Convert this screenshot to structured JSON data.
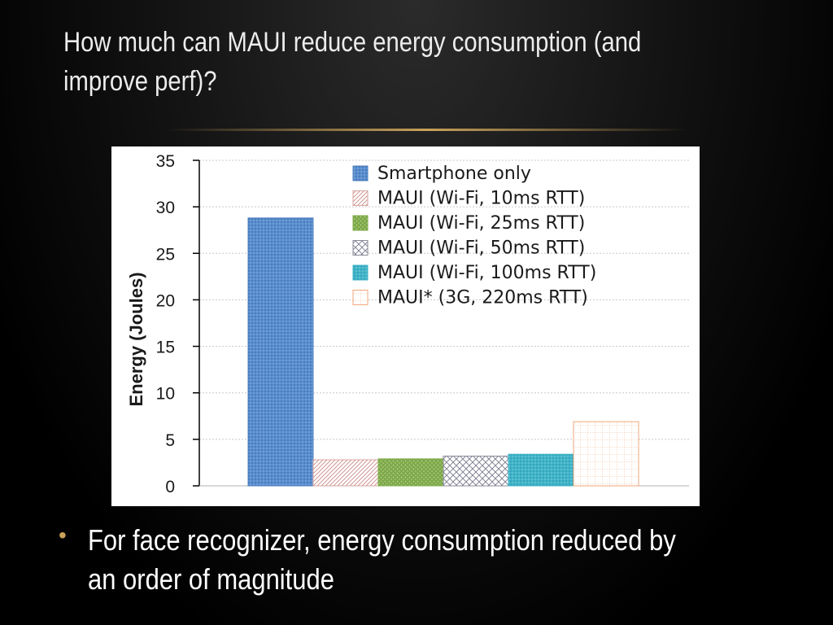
{
  "slide": {
    "title": "How much can MAUI reduce energy consumption (and improve perf)?",
    "bullet_symbol": "•",
    "bullet": "For face recognizer, energy consumption reduced by an order of magnitude"
  },
  "chart_data": {
    "type": "bar",
    "title": "",
    "xlabel": "",
    "ylabel": "Energy (Joules)",
    "ylim": [
      0,
      35
    ],
    "yticks": [
      0,
      5,
      10,
      15,
      20,
      25,
      30,
      35
    ],
    "grid": true,
    "legend_position": "top-right",
    "series": [
      {
        "name": "Smartphone only",
        "value": 28.8,
        "color": "#4f7fbf",
        "pattern": "dots"
      },
      {
        "name": "MAUI (Wi-Fi, 10ms RTT)",
        "value": 2.8,
        "color": "#d9a5a0",
        "pattern": "diagonal"
      },
      {
        "name": "MAUI (Wi-Fi, 25ms RTT)",
        "value": 2.9,
        "color": "#7faa4a",
        "pattern": "dots"
      },
      {
        "name": "MAUI (Wi-Fi, 50ms RTT)",
        "value": 3.2,
        "color": "#8a8a9a",
        "pattern": "crosshatch"
      },
      {
        "name": "MAUI (Wi-Fi, 100ms RTT)",
        "value": 3.4,
        "color": "#3fb3c7",
        "pattern": "dots"
      },
      {
        "name": "MAUI* (3G, 220ms RTT)",
        "value": 6.9,
        "color": "#f2a77a",
        "pattern": "grid"
      }
    ]
  }
}
